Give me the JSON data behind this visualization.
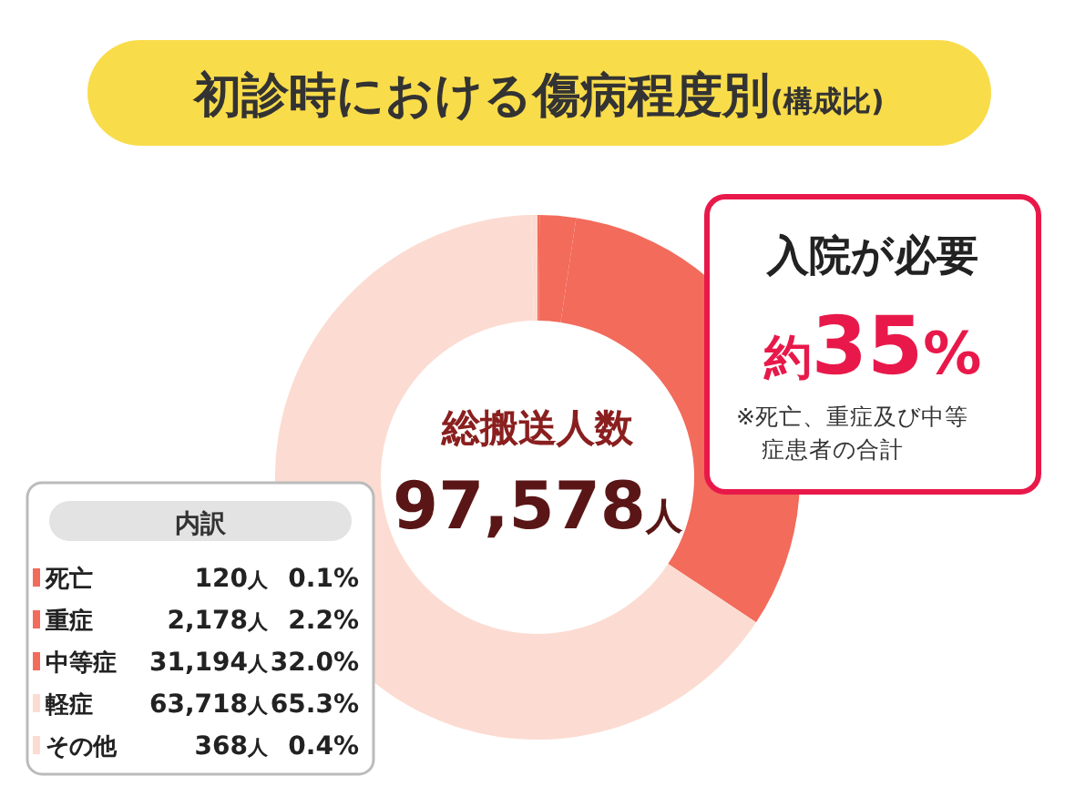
{
  "chart_data": {
    "type": "donut",
    "title": "初診時における傷病程度別",
    "subtitle": "(構成比)",
    "categories": [
      "死亡",
      "重症",
      "中等症",
      "軽症",
      "その他"
    ],
    "values": [
      120,
      2178,
      31194,
      63718,
      368
    ],
    "colors": [
      "#f26b5b",
      "#f26b5b",
      "#f26b5b",
      "#fcdcd2",
      "#fcdcd2"
    ],
    "legend_title": "内訳",
    "legend": "bottom left",
    "value_labels": [
      "120人",
      "2,178人",
      "31,194人",
      "63,718人",
      "368人"
    ],
    "annotations": [
      {
        "text": "0.1%",
        "x": "死亡"
      },
      {
        "text": "2.2%",
        "x": "重症"
      },
      {
        "text": "32.0%",
        "x": "中等症"
      },
      {
        "text": "65.3%",
        "x": "軽症"
      },
      {
        "text": "0.4%",
        "x": "その他"
      },
      "総搬送人数",
      "97,578人",
      "入院が必要",
      "約35%",
      "※死亡、重症及び中等症患者の合計"
    ]
  }
}
